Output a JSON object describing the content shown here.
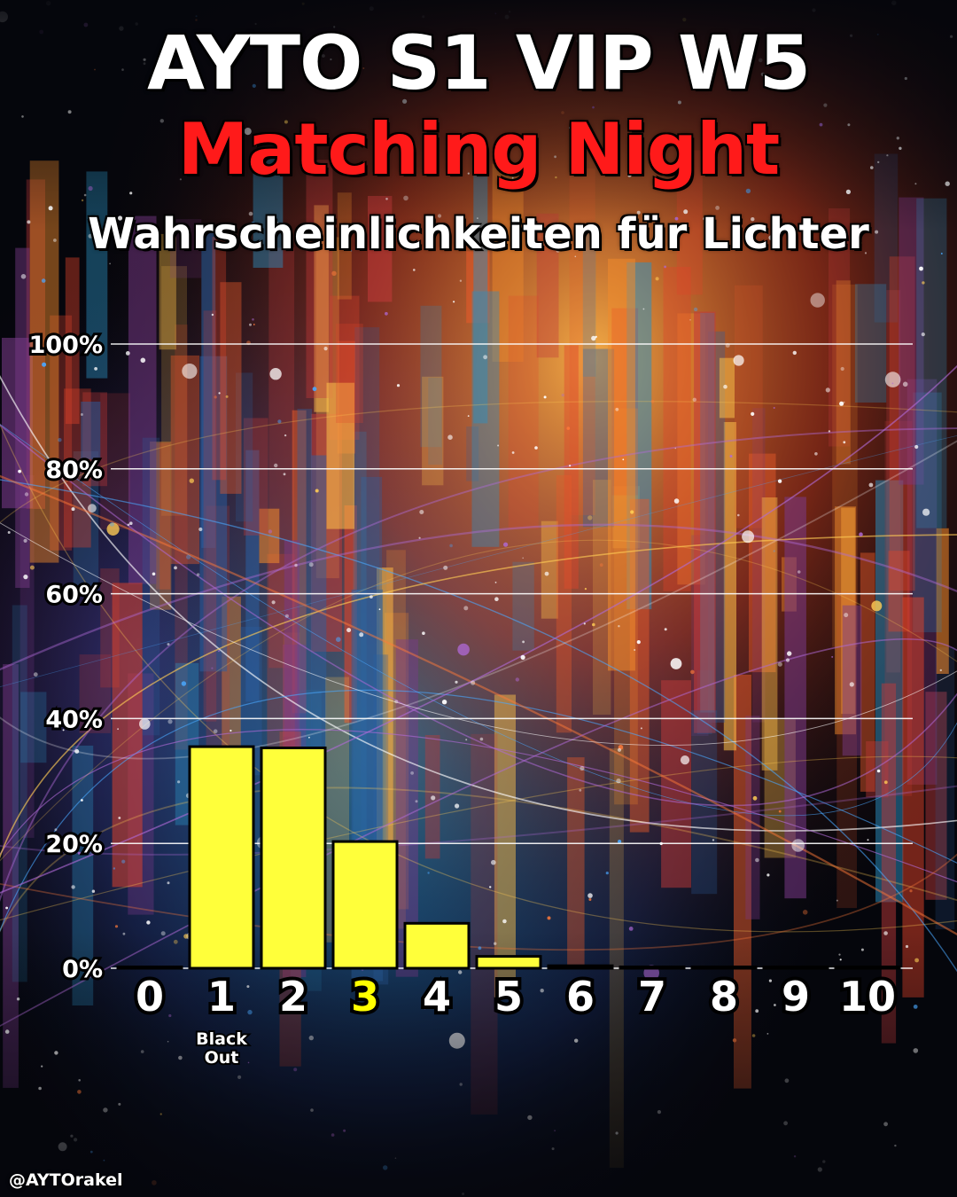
{
  "title": "AYTO S1 VIP W5",
  "subtitle": "Matching Night",
  "heading": "Wahrscheinlichkeiten für Lichter",
  "handle": "@AYTOrakel",
  "colors": {
    "bar": "#ffff3a",
    "highlight_label": "#ffff00",
    "subtitle": "#ff1a1a",
    "grid": "#ffffff"
  },
  "chart_data": {
    "type": "bar",
    "categories": [
      "0",
      "1",
      "2",
      "3",
      "4",
      "5",
      "6",
      "7",
      "8",
      "9",
      "10"
    ],
    "values": [
      0.2,
      35.5,
      35.3,
      20.3,
      7.2,
      1.9,
      0.4,
      0.1,
      0.05,
      0.02,
      0.01
    ],
    "ylim": [
      0,
      100
    ],
    "yticks": [
      "0%",
      "20%",
      "40%",
      "60%",
      "80%",
      "100%"
    ],
    "highlight_category": "3",
    "annotations": [
      {
        "category": "1",
        "text": [
          "Black",
          "Out"
        ]
      }
    ],
    "grid": true
  }
}
